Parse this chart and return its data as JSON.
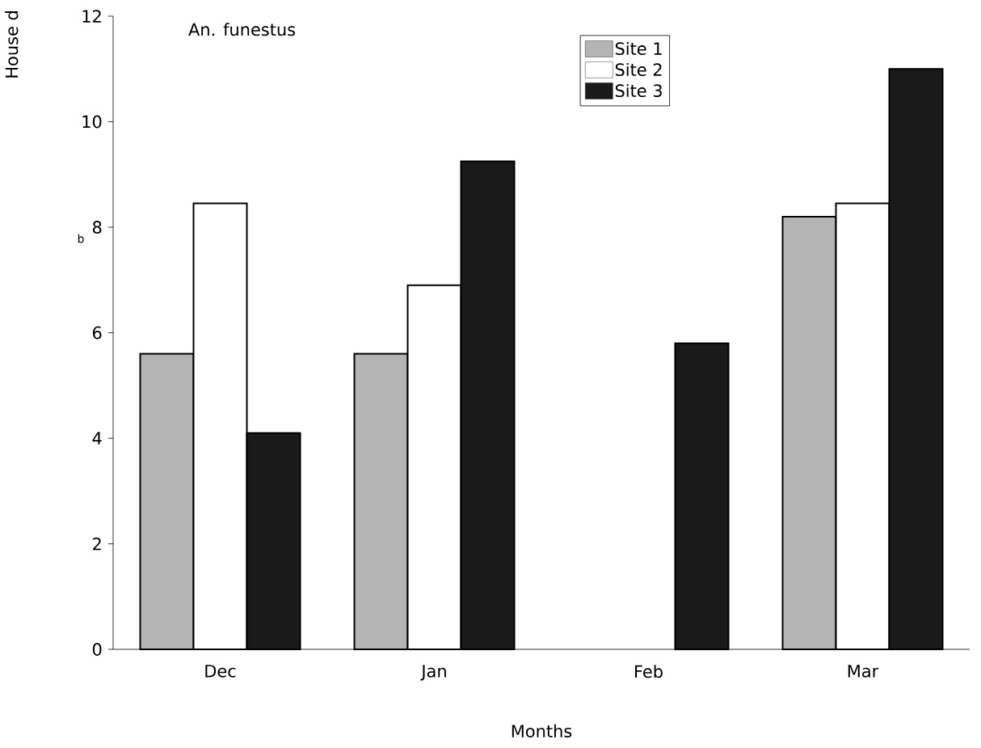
{
  "chart_data": {
    "type": "bar",
    "title": "An. funestus",
    "xlabel": "Months",
    "ylabel": "House d",
    "annotations": [
      "b"
    ],
    "categories": [
      "Dec",
      "Jan",
      "Feb",
      "Mar"
    ],
    "series": [
      {
        "name": "Site 1",
        "color": "#b4b4b4",
        "values": [
          5.6,
          5.6,
          null,
          8.2
        ]
      },
      {
        "name": "Site 2",
        "color": "#ffffff",
        "values": [
          8.45,
          6.9,
          null,
          8.45
        ]
      },
      {
        "name": "Site 3",
        "color": "#1a1a1a",
        "values": [
          4.1,
          9.25,
          5.8,
          11.0
        ]
      }
    ],
    "ylim": [
      0,
      12
    ],
    "yticks": [
      0,
      2,
      4,
      6,
      8,
      10,
      12
    ],
    "legend": "top right",
    "grid": false
  }
}
